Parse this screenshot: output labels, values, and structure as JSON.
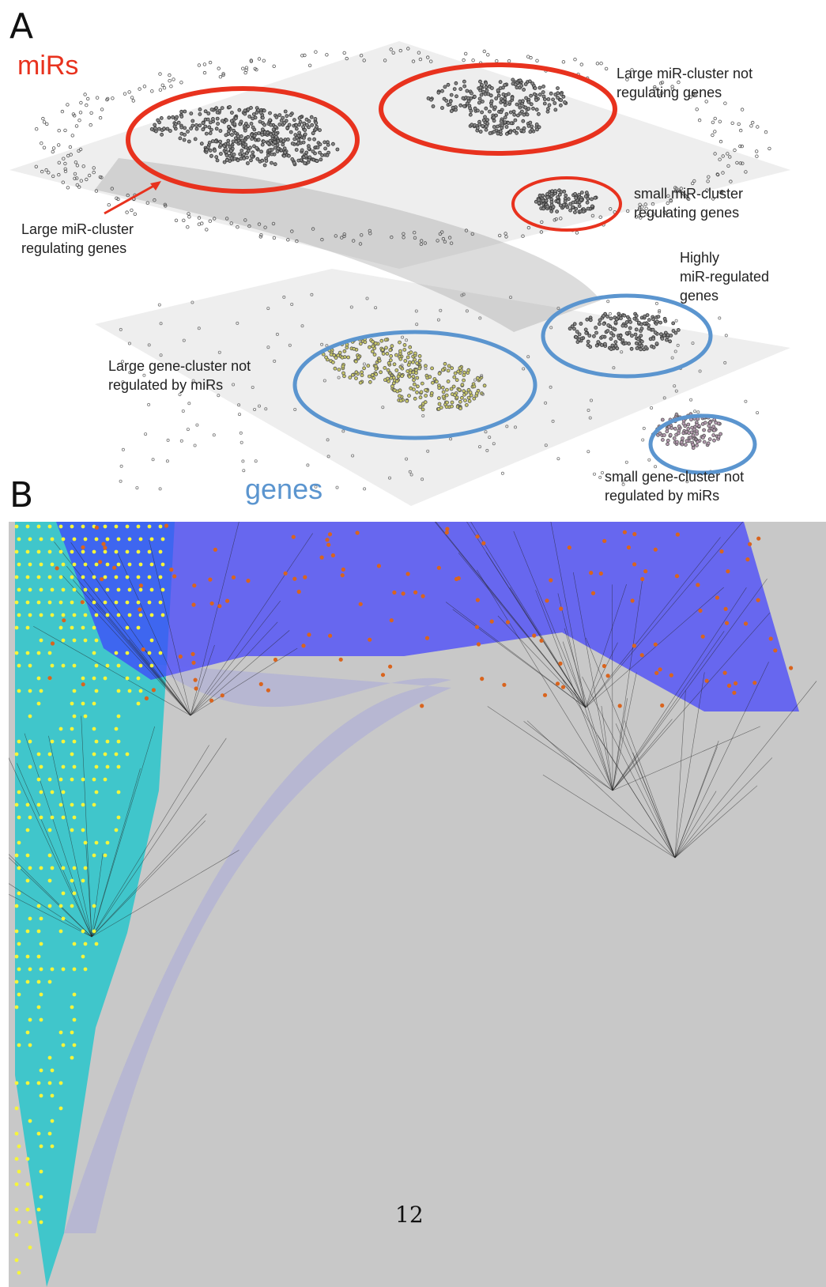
{
  "panel_a": {
    "letter": "A",
    "layer_mirs_label": "miRs",
    "layer_genes_label": "genes",
    "colors": {
      "mir_cluster": "#e8321e",
      "gene_cluster": "#5b95cf",
      "node": "#555555"
    },
    "annotations": {
      "large_mir_not_regulating": [
        "Large miR-cluster not",
        "regulating genes"
      ],
      "large_mir_regulating": [
        "Large miR-cluster",
        "regulating genes"
      ],
      "small_mir_regulating": [
        "small miR-cluster",
        "regulating genes"
      ],
      "highly_regulated": [
        "Highly",
        "miR-regulated",
        "genes"
      ],
      "large_gene_not_regulated": [
        "Large gene-cluster not",
        "regulated by miRs"
      ],
      "small_gene_not_regulated": [
        "small gene-cluster not",
        "regulated by miRs"
      ]
    }
  },
  "panel_b": {
    "letter": "B",
    "colors": {
      "background": "#c8c8c8",
      "cyan_edges": "#13c6cc",
      "blue_edges": "#3d3dff",
      "yellow_nodes": "#f5f53a",
      "orange_nodes": "#d9641e"
    }
  },
  "page_number": "12"
}
